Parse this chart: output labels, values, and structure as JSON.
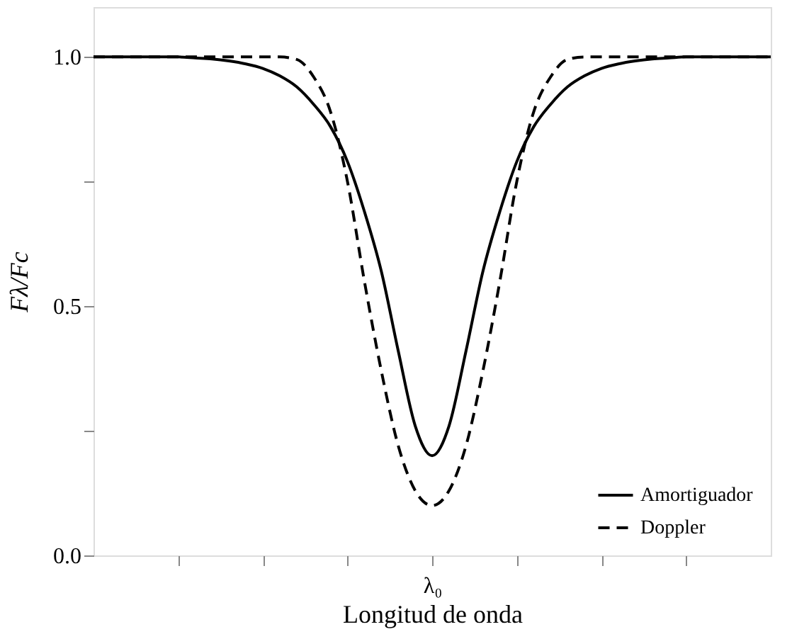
{
  "chart_data": {
    "type": "line",
    "xlabel": "Longitud de onda",
    "ylabel": "Fλ/Fc",
    "categories": [
      null,
      null,
      null,
      null,
      null,
      null,
      null,
      null,
      null,
      null,
      null,
      null,
      null,
      null,
      null,
      null,
      null,
      null,
      null,
      null,
      "λ₀",
      null,
      null,
      null,
      null,
      null,
      null,
      null,
      null,
      null,
      null,
      null,
      null,
      null,
      null,
      null,
      null,
      null,
      null,
      null,
      null
    ],
    "ylim": [
      0,
      1.1
    ],
    "yticks": [
      {
        "value": 0,
        "label": "0.0"
      },
      {
        "value": 0.25,
        "label": null
      },
      {
        "value": 0.5,
        "label": "0.5"
      },
      {
        "value": 0.75,
        "label": null
      },
      {
        "value": 1,
        "label": "1.0"
      }
    ],
    "legend": "bottom right",
    "series": [
      {
        "name": "Amortiguador",
        "color": "#000000",
        "line_style": "solid",
        "values": [
          1,
          1,
          1,
          1,
          1,
          1,
          0.998,
          0.996,
          0.992,
          0.986,
          0.977,
          0.962,
          0.94,
          0.905,
          0.86,
          0.79,
          0.69,
          0.57,
          0.41,
          0.26,
          0.2,
          0.26,
          0.41,
          0.57,
          0.69,
          0.79,
          0.86,
          0.905,
          0.94,
          0.962,
          0.977,
          0.986,
          0.992,
          0.996,
          0.998,
          1,
          1,
          1,
          1,
          1,
          1
        ]
      },
      {
        "name": "Doppler",
        "color": "#000000",
        "line_style": "dashed",
        "values": [
          1,
          1,
          1,
          1,
          1,
          1,
          1,
          1,
          1,
          1,
          1,
          1,
          0.995,
          0.96,
          0.89,
          0.75,
          0.55,
          0.37,
          0.22,
          0.13,
          0.1,
          0.13,
          0.22,
          0.37,
          0.55,
          0.75,
          0.89,
          0.96,
          0.995,
          1,
          1,
          1,
          1,
          1,
          1,
          1,
          1,
          1,
          1,
          1,
          1
        ]
      }
    ]
  }
}
